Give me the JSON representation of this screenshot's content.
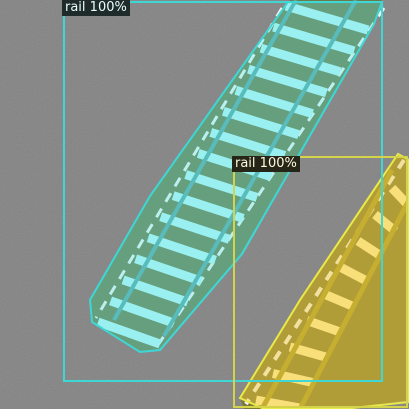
{
  "image": {
    "description_type": "aerial-segmentation-overlay",
    "background_color": "#8e8e8e"
  },
  "detections": [
    {
      "id": "det-1",
      "label": "rail 100%",
      "class": "rail",
      "score": "100%",
      "box_color": "#3fd6d6",
      "mask_color": "#7ff0f0",
      "label_bg": "#1f2a2a",
      "label_fg": "#e8ffff"
    },
    {
      "id": "det-2",
      "label": "rail 100%",
      "class": "rail",
      "score": "100%",
      "box_color": "#d4d44a",
      "mask_color": "#e0c23a",
      "label_bg": "#262618",
      "label_fg": "#fffbe0"
    }
  ]
}
